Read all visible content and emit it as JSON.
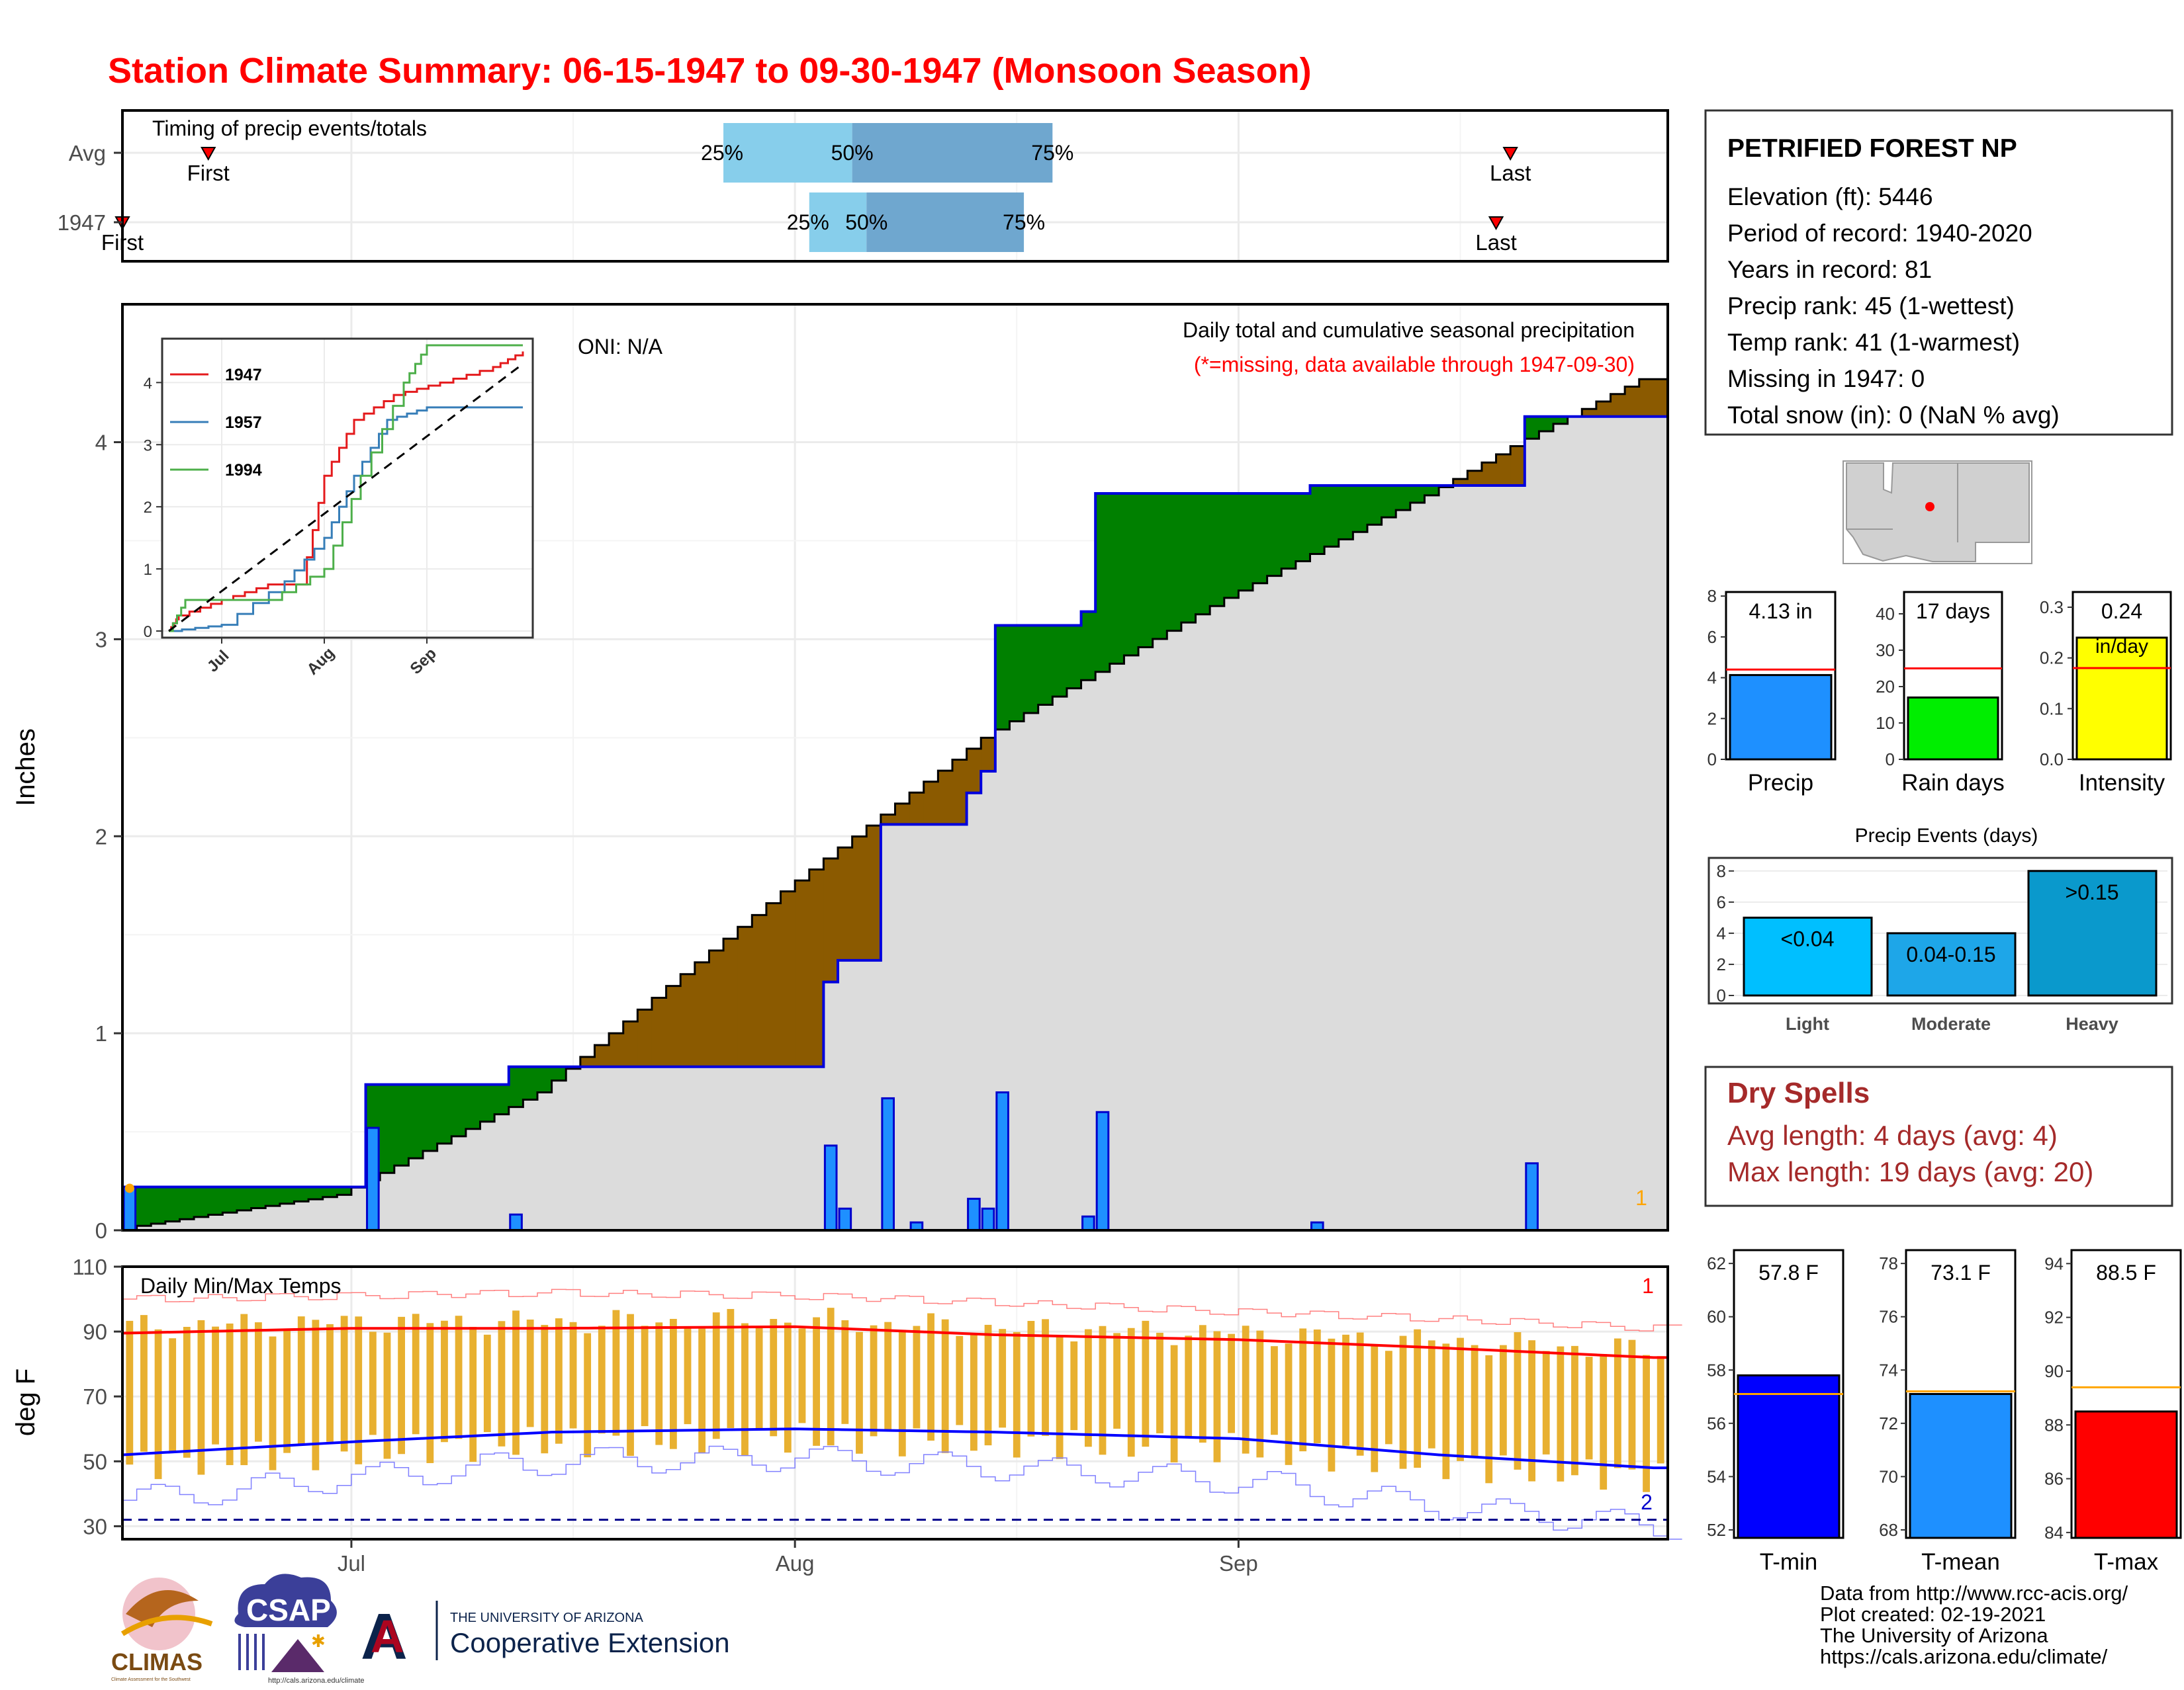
{
  "title": "Station Climate Summary: 06-15-1947 to 09-30-1947 (Monsoon Season)",
  "timing_panel": {
    "label": "Timing of precip events/totals",
    "rows": [
      "Avg",
      "1947"
    ],
    "first_label": "First",
    "last_label": "Last",
    "pct25": "25%",
    "pct50": "50%",
    "pct75": "75%",
    "avg": {
      "first": "1947-06-21",
      "p25": "1947-07-27",
      "p50": "1947-08-05",
      "p75": "1947-08-19",
      "last": "1947-09-20"
    },
    "y1947": {
      "first": "1947-06-15",
      "p25": "1947-08-02",
      "p50": "1947-08-06",
      "p75": "1947-08-17",
      "last": "1947-09-19"
    }
  },
  "precip_panel": {
    "ylabel": "Inches",
    "yticks": [
      "0",
      "1",
      "2",
      "3",
      "4"
    ],
    "oni": "ONI: N/A",
    "heading": "Daily total and cumulative seasonal precipitation",
    "note": "(*=missing, data available through 1947-09-30)",
    "missing_count": "1"
  },
  "inset": {
    "legend": [
      "1947",
      "1957",
      "1994"
    ],
    "yticks": [
      "0",
      "1",
      "2",
      "3",
      "4"
    ],
    "xticks": [
      "Jul",
      "Aug",
      "Sep"
    ]
  },
  "temp_panel": {
    "label": "Daily Min/Max Temps",
    "ylabel": "deg F",
    "yticks": [
      "30",
      "50",
      "70",
      "90",
      "110"
    ],
    "top_count": "1",
    "bottom_count": "2"
  },
  "x_axis": {
    "ticks": [
      "Jul",
      "Aug",
      "Sep"
    ]
  },
  "station": {
    "name": "PETRIFIED FOREST NP",
    "lines": [
      "Elevation (ft): 5446",
      "Period of record: 1940-2020",
      "Years in record: 81",
      "Precip rank: 45 (1-wettest)",
      "Temp rank: 41 (1-warmest)",
      "Missing in 1947: 0",
      "Total snow (in): 0 (NaN % avg)"
    ]
  },
  "summary_bars": {
    "precip": {
      "label": "Precip",
      "value_text": "4.13 in",
      "value": 4.13,
      "avg": 4.4,
      "yticks": [
        "0",
        "2",
        "4",
        "6",
        "8"
      ],
      "color": "#1e90ff"
    },
    "rain_days": {
      "label": "Rain days",
      "value_text": "17 days",
      "value": 17,
      "avg": 25,
      "yticks": [
        "0",
        "10",
        "20",
        "30",
        "40"
      ],
      "color": "#00ee00"
    },
    "intensity": {
      "label": "Intensity",
      "value_text": "0.24",
      "unit_text": "in/day",
      "value": 0.24,
      "avg": 0.18,
      "yticks": [
        "0.0",
        "0.1",
        "0.2",
        "0.3"
      ],
      "color": "#ffff00"
    }
  },
  "precip_events": {
    "title": "Precip Events (days)",
    "yticks": [
      "0",
      "2",
      "4",
      "6",
      "8"
    ],
    "categories": [
      "Light",
      "Moderate",
      "Heavy"
    ],
    "labels": [
      "<0.04",
      "0.04-0.15",
      ">0.15"
    ],
    "values": [
      5,
      4,
      8
    ]
  },
  "dry_spells": {
    "title": "Dry Spells",
    "avg_length": "Avg length: 4 days (avg: 4)",
    "max_length": "Max length: 19 days (avg: 20)"
  },
  "temp_bars": {
    "tmin": {
      "label": "T-min",
      "value_text": "57.8 F",
      "value": 57.8,
      "avg": 57.1,
      "yticks": [
        "52",
        "54",
        "56",
        "58",
        "60",
        "62"
      ],
      "color": "#0000ff"
    },
    "tmean": {
      "label": "T-mean",
      "value_text": "73.1 F",
      "value": 73.1,
      "avg": 73.2,
      "yticks": [
        "68",
        "70",
        "72",
        "74",
        "76",
        "78"
      ],
      "color": "#1e90ff"
    },
    "tmax": {
      "label": "T-max",
      "value_text": "88.5 F",
      "value": 88.5,
      "avg": 89.4,
      "yticks": [
        "84",
        "86",
        "88",
        "90",
        "92",
        "94"
      ],
      "color": "#ff0000"
    }
  },
  "logos": {
    "climas": "CLIMAS",
    "climas_sub": "Climate Assessment for the Southwest",
    "csap": "CSAP",
    "csap_url": "http://cals.arizona.edu/climate",
    "ua_small": "THE UNIVERSITY OF ARIZONA",
    "ua_big": "Cooperative Extension"
  },
  "footer": [
    "Data from http://www.rcc-acis.org/",
    "Plot created: 02-19-2021",
    "The University of Arizona",
    "https://cals.arizona.edu/climate/"
  ],
  "colors": {
    "title": "#ff0000",
    "dry_spells": "#a52a2a",
    "above_avg_fill": "#008000",
    "below_avg_fill": "#8b5a00",
    "daily_bar": "#1e90ff",
    "tmax_line": "#ff0000",
    "tmin_line": "#0000ff",
    "temp_range_bar": "#e8b030"
  },
  "chart_data": [
    {
      "type": "line",
      "title": "Daily total and cumulative seasonal precipitation",
      "ylabel": "Inches",
      "ylim": [
        0,
        4.7
      ],
      "xlim": [
        "1947-06-15",
        "1947-09-30"
      ],
      "daily_bars": [
        {
          "date": "1947-06-15",
          "value": 0.22
        },
        {
          "date": "1947-07-02",
          "value": 0.52
        },
        {
          "date": "1947-07-12",
          "value": 0.08
        },
        {
          "date": "1947-08-03",
          "value": 0.43
        },
        {
          "date": "1947-08-04",
          "value": 0.11
        },
        {
          "date": "1947-08-07",
          "value": 0.67
        },
        {
          "date": "1947-08-09",
          "value": 0.04
        },
        {
          "date": "1947-08-13",
          "value": 0.16
        },
        {
          "date": "1947-08-14",
          "value": 0.11
        },
        {
          "date": "1947-08-15",
          "value": 0.7
        },
        {
          "date": "1947-08-21",
          "value": 0.07
        },
        {
          "date": "1947-08-22",
          "value": 0.6
        },
        {
          "date": "1947-09-06",
          "value": 0.04
        },
        {
          "date": "1947-09-21",
          "value": 0.34
        }
      ],
      "series": [
        {
          "name": "1947",
          "x": [
            "1947-06-15",
            "1947-07-02",
            "1947-07-12",
            "1947-08-03",
            "1947-08-04",
            "1947-08-07",
            "1947-08-13",
            "1947-08-14",
            "1947-08-15",
            "1947-08-21",
            "1947-08-22",
            "1947-09-06",
            "1947-09-21",
            "1947-09-30"
          ],
          "values": [
            0.22,
            0.74,
            0.83,
            1.26,
            1.37,
            2.06,
            2.22,
            2.33,
            3.07,
            3.14,
            3.74,
            3.78,
            4.13,
            4.13
          ]
        },
        {
          "name": "Avg",
          "x": [
            "1947-06-15",
            "1947-07-01",
            "1947-07-15",
            "1947-08-01",
            "1947-08-15",
            "1947-09-01",
            "1947-09-15",
            "1947-09-21",
            "1947-09-30"
          ],
          "values": [
            0.0,
            0.18,
            0.7,
            1.72,
            2.5,
            3.21,
            3.73,
            3.98,
            4.32
          ]
        }
      ]
    },
    {
      "type": "line",
      "title": "",
      "xlim": [
        "1947-06-15",
        "1947-09-30"
      ],
      "ylim": [
        0,
        4.6
      ],
      "series": [
        {
          "name": "1947",
          "x": [
            "1947-06-15",
            "1947-06-18",
            "1947-07-01",
            "1947-07-15",
            "1947-07-25",
            "1947-08-01",
            "1947-08-10",
            "1947-08-22",
            "1947-09-05",
            "1947-09-21",
            "1947-09-30"
          ],
          "values": [
            0.0,
            0.25,
            0.5,
            0.75,
            0.75,
            2.5,
            3.4,
            3.8,
            4.0,
            4.25,
            4.5
          ]
        },
        {
          "name": "1957",
          "x": [
            "1947-06-15",
            "1947-07-01",
            "1947-07-20",
            "1947-08-01",
            "1947-08-10",
            "1947-08-20",
            "1947-09-01",
            "1947-09-30"
          ],
          "values": [
            0.0,
            0.1,
            0.8,
            1.5,
            2.5,
            3.4,
            3.6,
            3.6
          ]
        },
        {
          "name": "1994",
          "x": [
            "1947-06-15",
            "1947-06-20",
            "1947-07-15",
            "1947-08-01",
            "1947-08-12",
            "1947-08-25",
            "1947-09-01",
            "1947-09-30"
          ],
          "values": [
            0.0,
            0.5,
            0.5,
            1.0,
            2.5,
            4.0,
            4.6,
            4.6
          ]
        },
        {
          "name": "Avg",
          "x": [
            "1947-06-15",
            "1947-09-30"
          ],
          "values": [
            0.0,
            4.3
          ]
        }
      ]
    },
    {
      "type": "line",
      "title": "Daily Min/Max Temps",
      "ylabel": "deg F",
      "ylim": [
        26,
        110
      ],
      "xlim": [
        "1947-06-15",
        "1947-09-30"
      ],
      "series": [
        {
          "name": "avg max",
          "x": [
            "1947-06-15",
            "1947-07-01",
            "1947-07-15",
            "1947-08-01",
            "1947-08-15",
            "1947-09-01",
            "1947-09-15",
            "1947-09-30"
          ],
          "values": [
            89.5,
            91,
            91,
            91.5,
            89,
            87.5,
            85,
            82
          ]
        },
        {
          "name": "avg min",
          "x": [
            "1947-06-15",
            "1947-07-01",
            "1947-07-15",
            "1947-08-01",
            "1947-08-15",
            "1947-09-01",
            "1947-09-15",
            "1947-09-30"
          ],
          "values": [
            52,
            56,
            59,
            60,
            59,
            57,
            52,
            48
          ]
        },
        {
          "name": "record high",
          "x": [
            "1947-06-15",
            "1947-07-01",
            "1947-07-15",
            "1947-08-01",
            "1947-08-15",
            "1947-09-01",
            "1947-09-15",
            "1947-09-30"
          ],
          "values": [
            100,
            101,
            102,
            101,
            99,
            96,
            94,
            91
          ]
        },
        {
          "name": "record low",
          "x": [
            "1947-06-15",
            "1947-07-01",
            "1947-07-15",
            "1947-08-01",
            "1947-08-15",
            "1947-09-01",
            "1947-09-15",
            "1947-09-30"
          ],
          "values": [
            38,
            45,
            50,
            51,
            48,
            44,
            36,
            30
          ]
        }
      ],
      "daily_range": {
        "max_typical": 94,
        "min_typical": 56
      },
      "reference_line": 32
    }
  ]
}
